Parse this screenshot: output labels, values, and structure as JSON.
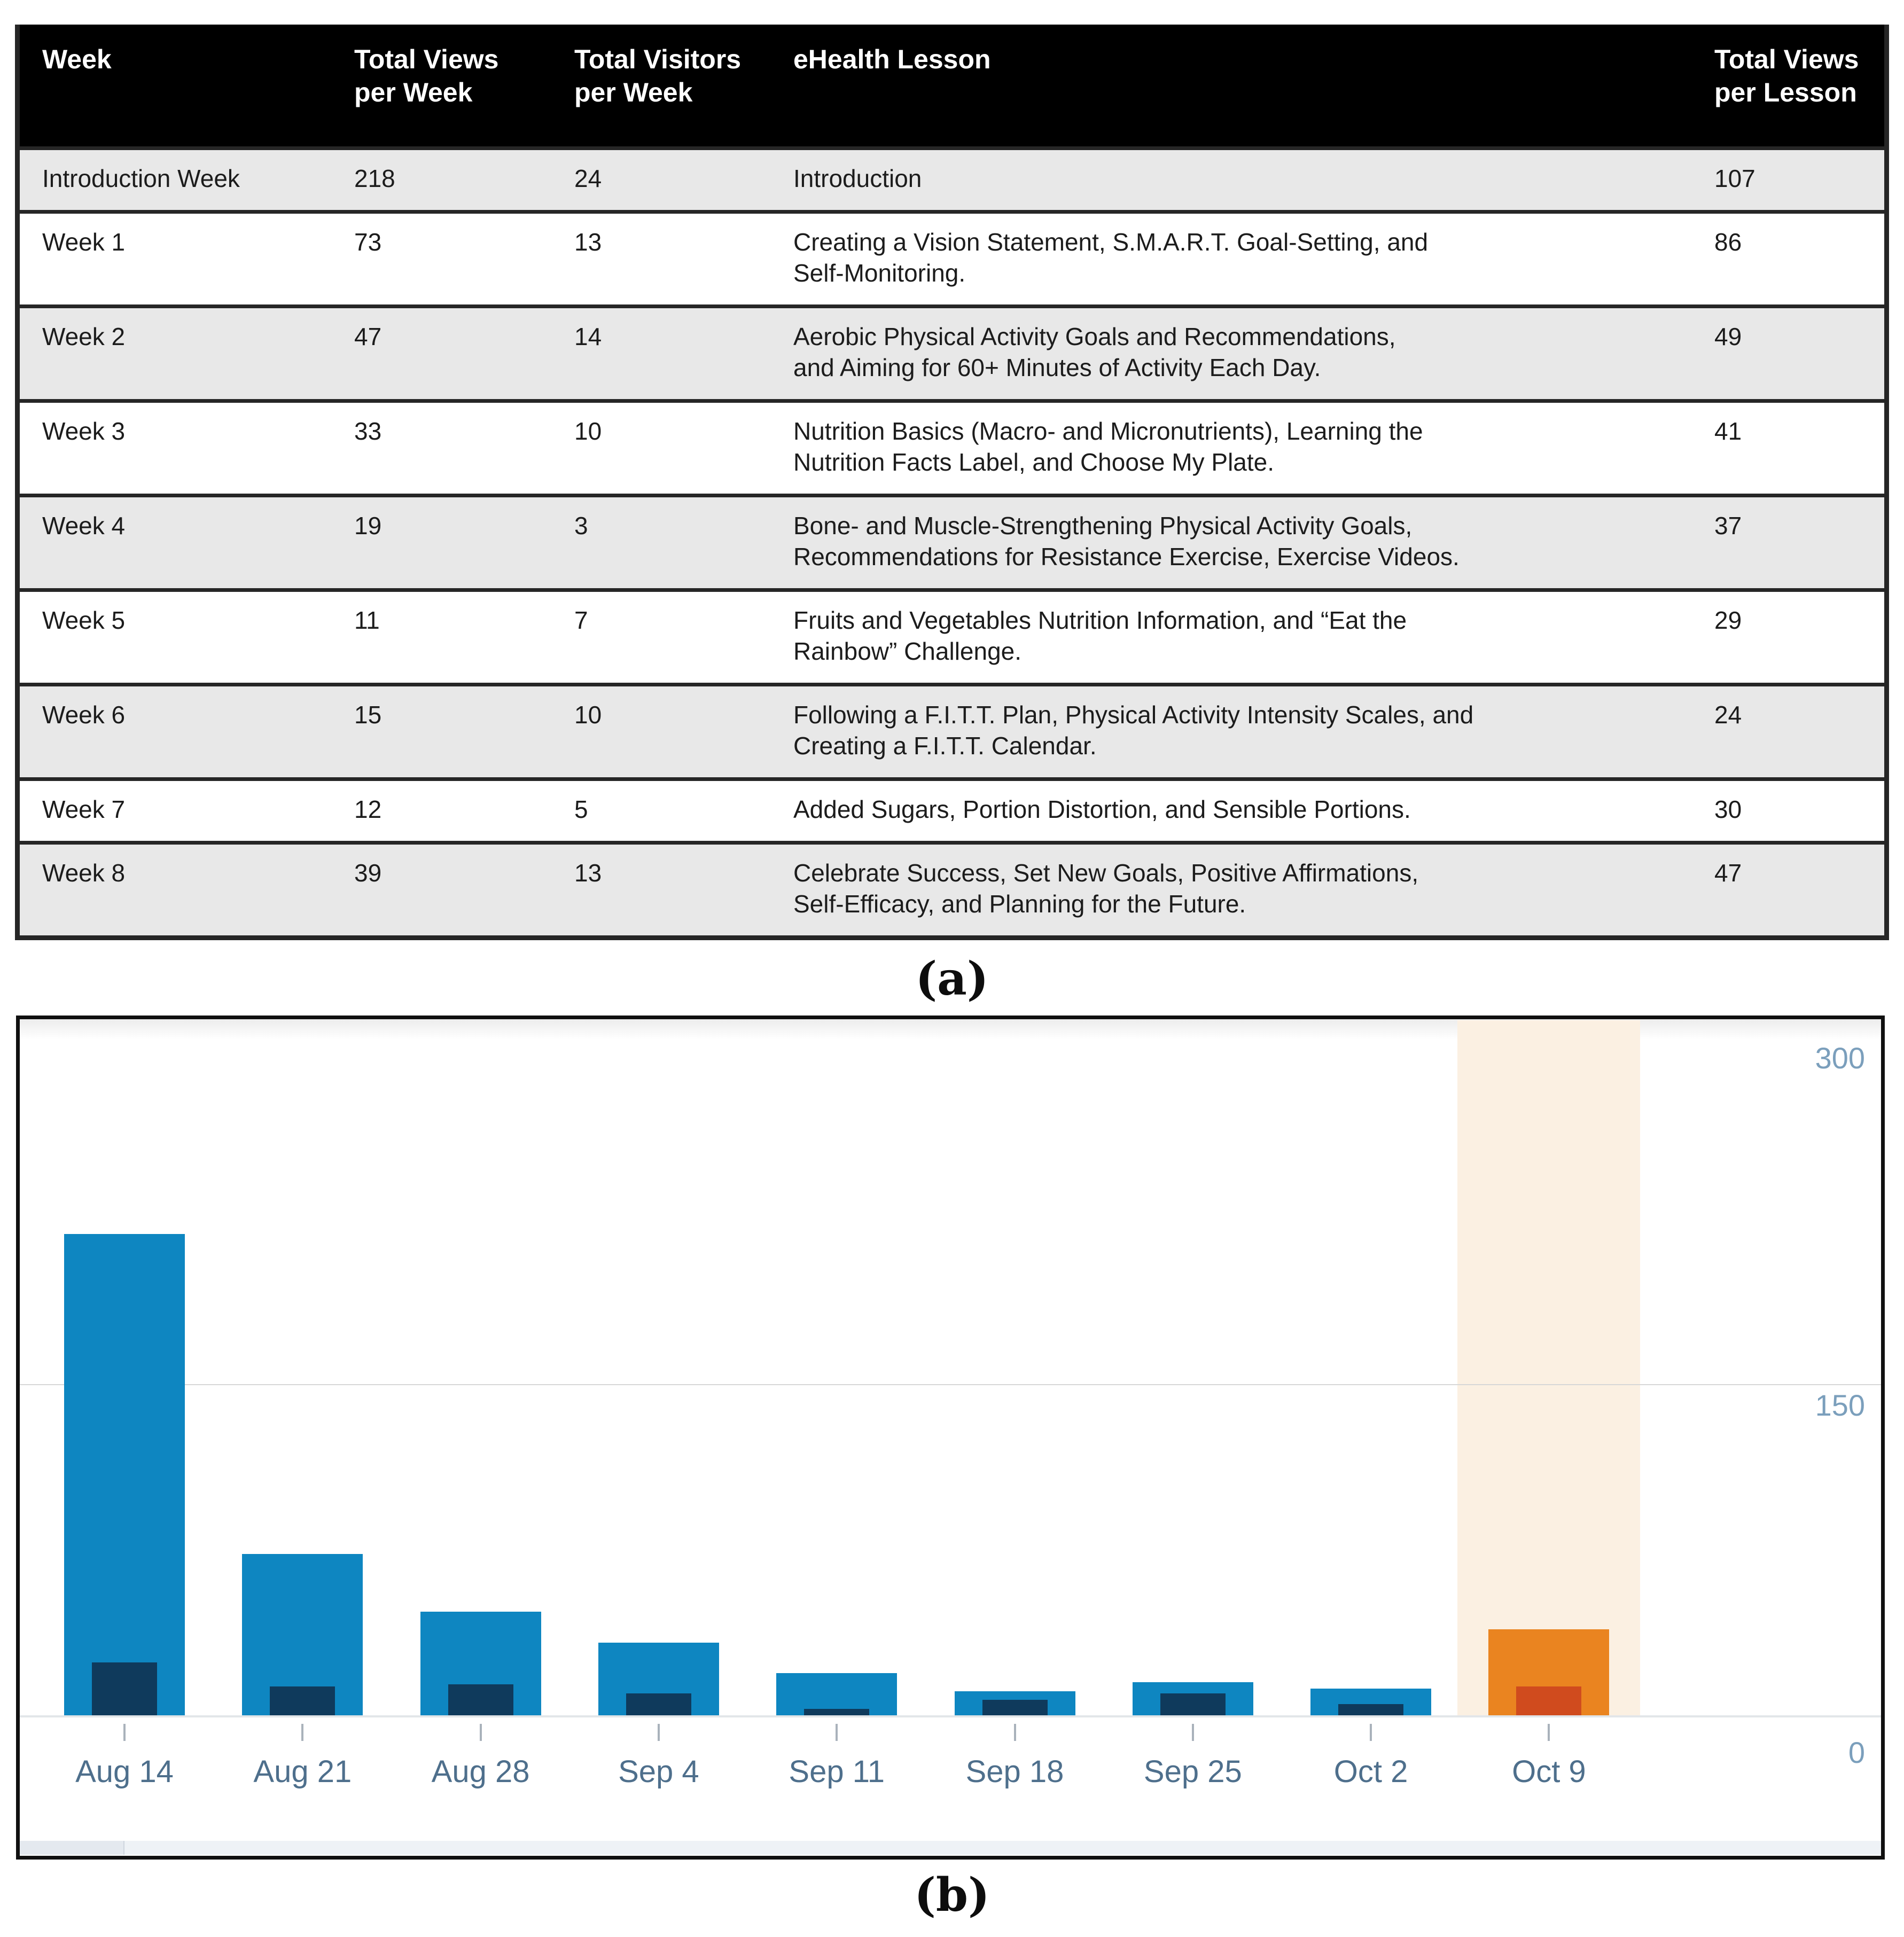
{
  "captions": {
    "a": "(a)",
    "b": "(b)"
  },
  "table": {
    "columns": [
      "Week",
      "Total Views\nper Week",
      "Total Visitors\nper Week",
      "eHealth Lesson",
      "Total Views\nper Lesson"
    ],
    "rows": [
      {
        "week": "Introduction Week",
        "views": "218",
        "visitors": "24",
        "lesson": "Introduction",
        "lesson_views": "107"
      },
      {
        "week": "Week 1",
        "views": "73",
        "visitors": "13",
        "lesson": "Creating a Vision Statement, S.M.A.R.T. Goal-Setting, and\nSelf-Monitoring.",
        "lesson_views": "86"
      },
      {
        "week": "Week 2",
        "views": "47",
        "visitors": "14",
        "lesson": "Aerobic Physical Activity Goals and Recommendations,\nand Aiming for 60+ Minutes of Activity Each Day.",
        "lesson_views": "49"
      },
      {
        "week": "Week 3",
        "views": "33",
        "visitors": "10",
        "lesson": "Nutrition Basics (Macro- and Micronutrients), Learning the\nNutrition Facts Label, and Choose My Plate.",
        "lesson_views": "41"
      },
      {
        "week": "Week 4",
        "views": "19",
        "visitors": "3",
        "lesson": "Bone- and Muscle-Strengthening Physical Activity Goals,\nRecommendations for Resistance Exercise, Exercise Videos.",
        "lesson_views": "37"
      },
      {
        "week": "Week 5",
        "views": "11",
        "visitors": "7",
        "lesson": "Fruits and Vegetables Nutrition Information, and “Eat the\nRainbow” Challenge.",
        "lesson_views": "29"
      },
      {
        "week": "Week 6",
        "views": "15",
        "visitors": "10",
        "lesson": "Following a F.I.T.T. Plan, Physical Activity Intensity Scales, and\nCreating a F.I.T.T. Calendar.",
        "lesson_views": "24"
      },
      {
        "week": "Week 7",
        "views": "12",
        "visitors": "5",
        "lesson": "Added Sugars, Portion Distortion, and Sensible Portions.",
        "lesson_views": "30"
      },
      {
        "week": "Week 8",
        "views": "39",
        "visitors": "13",
        "lesson": "Celebrate Success, Set New Goals, Positive Affirmations,\nSelf-Efficacy, and Planning for the Future.",
        "lesson_views": "47"
      }
    ]
  },
  "chart_data": {
    "type": "bar",
    "title": "",
    "xlabel": "",
    "ylabel": "",
    "categories": [
      "Aug 14",
      "Aug 21",
      "Aug 28",
      "Sep 4",
      "Sep 11",
      "Sep 18",
      "Sep 25",
      "Oct 2",
      "Oct 9"
    ],
    "series": [
      {
        "name": "Total Views per Week",
        "values": [
          218,
          73,
          47,
          33,
          19,
          11,
          15,
          12,
          39
        ]
      },
      {
        "name": "Total Visitors per Week",
        "values": [
          24,
          13,
          14,
          10,
          3,
          7,
          10,
          5,
          13
        ]
      }
    ],
    "ylim": [
      0,
      300
    ],
    "y_ticks": [
      300,
      150,
      0
    ],
    "grid": "horizontal gridline at 150, right-side axis labels",
    "legend_position": "none",
    "highlight_index": 8,
    "highlighted_category": "Oct 9",
    "colors": {
      "views_bar": "#0e86c1",
      "visitors_bar": "#0f3a5c",
      "highlight_views_bar": "#ea8420",
      "highlight_visitors_bar": "#d04b1e",
      "highlight_band": "#fbf0e2",
      "y_axis_label": "#7b9fbc",
      "x_axis_label": "#4e6f8c"
    }
  }
}
